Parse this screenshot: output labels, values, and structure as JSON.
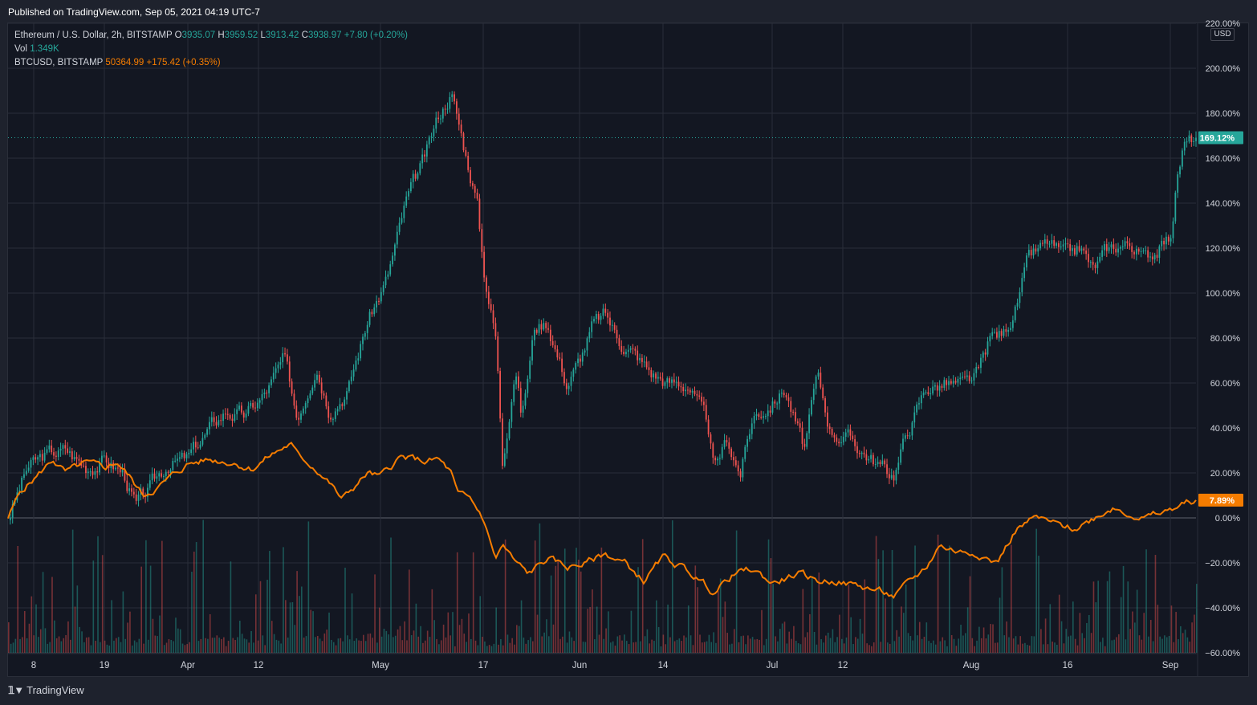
{
  "header": {
    "published": "Published on TradingView.com, Sep 05, 2021 04:19 UTC-7"
  },
  "legend": {
    "main_symbol": "Ethereum / U.S. Dollar, 2h, BITSTAMP",
    "o_label": "O",
    "o_value": "3935.07",
    "h_label": "H",
    "h_value": "3959.52",
    "l_label": "L",
    "l_value": "3913.42",
    "c_label": "C",
    "c_value": "3938.97",
    "change": "+7.80 (+0.20%)",
    "vol_label": "Vol",
    "vol_value": "1.349K",
    "compare_symbol": "BTCUSD, BITSTAMP",
    "compare_value": "50364.99",
    "compare_change": "+175.42 (+0.35%)"
  },
  "currency_badge": "USD",
  "footer": {
    "brand": "TradingView",
    "brand_icon": "tradingview-logo-icon"
  },
  "colors": {
    "background": "#131722",
    "up": "#26a69a",
    "down": "#ef5350",
    "compare": "#f57c00",
    "grid": "#2a2e39",
    "text": "#d1d4dc"
  },
  "chart_data": {
    "type": "line",
    "y_axis": {
      "scale": "percent",
      "ylim": [
        -60,
        220
      ],
      "ticks": [
        -60,
        -40,
        -20,
        0,
        20,
        40,
        60,
        80,
        100,
        120,
        140,
        160,
        180,
        200,
        220
      ],
      "tick_labels": [
        "−60.00%",
        "−40.00%",
        "−20.00%",
        "0.00%",
        "20.00%",
        "40.00%",
        "60.00%",
        "80.00%",
        "100.00%",
        "120.00%",
        "140.00%",
        "160.00%",
        "180.00%",
        "200.00%",
        "220.00%"
      ]
    },
    "x_axis": {
      "xlim": [
        "2021-03-04",
        "2021-09-05"
      ],
      "ticks": [
        "2021-03-08",
        "2021-03-19",
        "2021-04-01",
        "2021-04-12",
        "2021-05-01",
        "2021-05-17",
        "2021-06-01",
        "2021-06-14",
        "2021-07-01",
        "2021-07-12",
        "2021-08-01",
        "2021-08-16",
        "2021-09-01"
      ],
      "tick_labels": [
        "8",
        "19",
        "Apr",
        "12",
        "May",
        "17",
        "Jun",
        "14",
        "Jul",
        "12",
        "Aug",
        "16",
        "Sep"
      ]
    },
    "series": [
      {
        "name": "Ethereum / U.S. Dollar, 2h, BITSTAMP",
        "style": "candles",
        "last_value_label": "169.12%",
        "x": [
          "2021-03-04",
          "2021-03-07",
          "2021-03-10",
          "2021-03-13",
          "2021-03-16",
          "2021-03-19",
          "2021-03-22",
          "2021-03-24",
          "2021-03-26",
          "2021-03-29",
          "2021-04-01",
          "2021-04-04",
          "2021-04-07",
          "2021-04-10",
          "2021-04-13",
          "2021-04-16",
          "2021-04-18",
          "2021-04-21",
          "2021-04-23",
          "2021-04-26",
          "2021-04-29",
          "2021-05-02",
          "2021-05-05",
          "2021-05-08",
          "2021-05-10",
          "2021-05-12",
          "2021-05-14",
          "2021-05-16",
          "2021-05-17",
          "2021-05-19",
          "2021-05-20",
          "2021-05-22",
          "2021-05-23",
          "2021-05-25",
          "2021-05-27",
          "2021-05-30",
          "2021-06-01",
          "2021-06-03",
          "2021-06-05",
          "2021-06-07",
          "2021-06-09",
          "2021-06-12",
          "2021-06-15",
          "2021-06-18",
          "2021-06-21",
          "2021-06-22",
          "2021-06-24",
          "2021-06-26",
          "2021-06-28",
          "2021-07-01",
          "2021-07-03",
          "2021-07-06",
          "2021-07-08",
          "2021-07-10",
          "2021-07-13",
          "2021-07-16",
          "2021-07-19",
          "2021-07-20",
          "2021-07-22",
          "2021-07-25",
          "2021-07-28",
          "2021-07-31",
          "2021-08-02",
          "2021-08-04",
          "2021-08-06",
          "2021-08-08",
          "2021-08-10",
          "2021-08-13",
          "2021-08-16",
          "2021-08-18",
          "2021-08-20",
          "2021-08-22",
          "2021-08-24",
          "2021-08-26",
          "2021-08-28",
          "2021-08-30",
          "2021-09-01",
          "2021-09-02",
          "2021-09-03",
          "2021-09-05"
        ],
        "values": [
          0,
          22,
          28,
          30,
          23,
          26,
          20,
          5,
          12,
          25,
          26,
          38,
          48,
          45,
          55,
          70,
          45,
          70,
          50,
          58,
          88,
          106,
          140,
          160,
          178,
          190,
          165,
          142,
          112,
          80,
          25,
          70,
          45,
          85,
          88,
          60,
          70,
          85,
          90,
          80,
          75,
          65,
          60,
          60,
          40,
          20,
          35,
          20,
          45,
          52,
          58,
          30,
          62,
          40,
          35,
          28,
          20,
          20,
          38,
          58,
          60,
          58,
          63,
          80,
          82,
          95,
          115,
          122,
          115,
          120,
          110,
          118,
          122,
          122,
          115,
          120,
          125,
          150,
          165,
          169.12
        ]
      },
      {
        "name": "BTCUSD, BITSTAMP",
        "style": "line",
        "last_value_label": "7.89%",
        "x": [
          "2021-03-04",
          "2021-03-06",
          "2021-03-09",
          "2021-03-11",
          "2021-03-13",
          "2021-03-16",
          "2021-03-19",
          "2021-03-21",
          "2021-03-23",
          "2021-03-25",
          "2021-03-28",
          "2021-04-01",
          "2021-04-04",
          "2021-04-08",
          "2021-04-11",
          "2021-04-14",
          "2021-04-17",
          "2021-04-18",
          "2021-04-21",
          "2021-04-23",
          "2021-04-25",
          "2021-04-29",
          "2021-05-01",
          "2021-05-04",
          "2021-05-08",
          "2021-05-10",
          "2021-05-12",
          "2021-05-13",
          "2021-05-15",
          "2021-05-17",
          "2021-05-18",
          "2021-05-19",
          "2021-05-20",
          "2021-05-22",
          "2021-05-24",
          "2021-05-27",
          "2021-05-30",
          "2021-06-02",
          "2021-06-05",
          "2021-06-08",
          "2021-06-11",
          "2021-06-14",
          "2021-06-17",
          "2021-06-19",
          "2021-06-22",
          "2021-06-25",
          "2021-06-28",
          "2021-07-01",
          "2021-07-05",
          "2021-07-08",
          "2021-07-11",
          "2021-07-14",
          "2021-07-17",
          "2021-07-20",
          "2021-07-22",
          "2021-07-25",
          "2021-07-27",
          "2021-07-30",
          "2021-08-02",
          "2021-08-05",
          "2021-08-08",
          "2021-08-11",
          "2021-08-14",
          "2021-08-17",
          "2021-08-20",
          "2021-08-23",
          "2021-08-25",
          "2021-08-28",
          "2021-08-31",
          "2021-09-02",
          "2021-09-05"
        ],
        "values": [
          0,
          12,
          20,
          26,
          20,
          24,
          22,
          25,
          18,
          10,
          15,
          24,
          26,
          25,
          22,
          28,
          33,
          28,
          22,
          16,
          8,
          20,
          18,
          27,
          25,
          26,
          20,
          10,
          8,
          0,
          -10,
          -18,
          -12,
          -20,
          -25,
          -18,
          -22,
          -20,
          -16,
          -20,
          -28,
          -18,
          -22,
          -26,
          -33,
          -25,
          -23,
          -29,
          -25,
          -28,
          -28,
          -30,
          -32,
          -35,
          -30,
          -22,
          -12,
          -15,
          -15,
          -20,
          -5,
          0,
          -3,
          -5,
          0,
          5,
          3,
          0,
          2,
          5,
          7.89
        ]
      }
    ],
    "volume": {
      "label": "Vol",
      "last_value": "1.349K"
    },
    "title": "",
    "xlabel": "",
    "ylabel": "",
    "grid": true,
    "legend": "top-left"
  }
}
